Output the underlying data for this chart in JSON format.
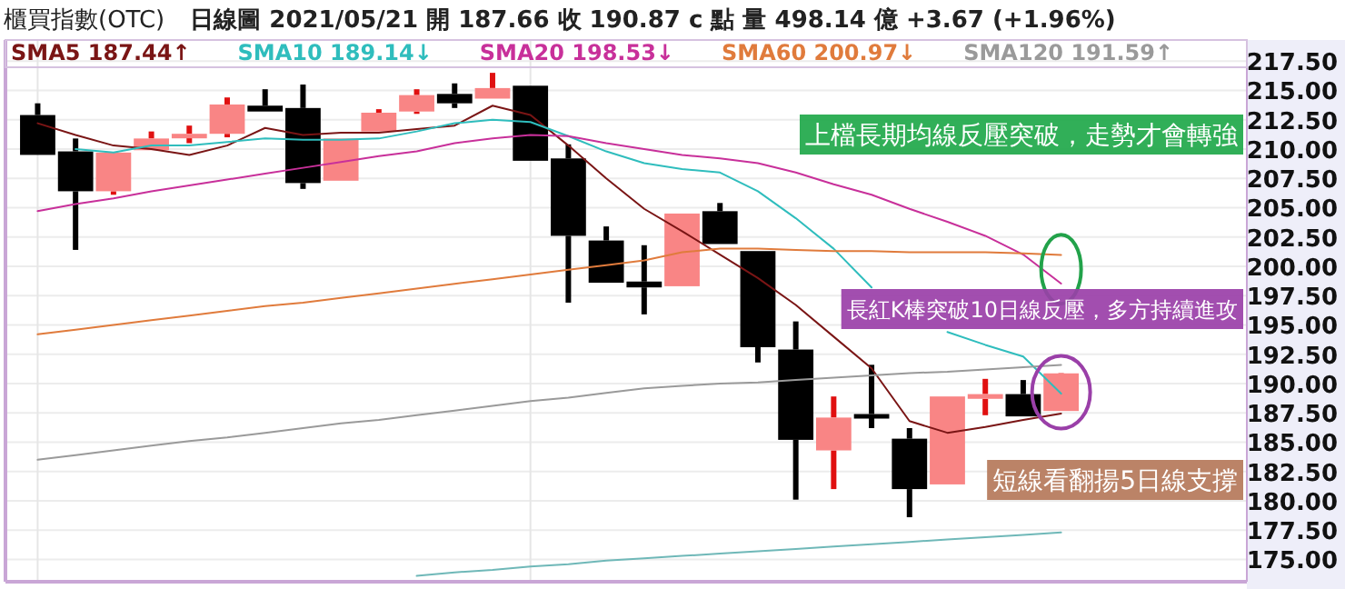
{
  "chart_data": {
    "type": "candlestick",
    "title": "櫃買指數(OTC)",
    "subtitle": "日線圖  2021/05/21  開 187.66  收 190.87 c 點  量 498.14 億  +3.67 (+1.96%)",
    "categories": [
      null,
      null,
      null,
      null,
      null,
      null,
      null,
      null,
      null,
      null,
      null,
      null,
      null,
      null,
      null,
      null,
      null,
      null,
      null,
      null,
      null,
      null,
      null,
      null,
      null,
      null,
      null,
      null
    ],
    "ohlc": [
      [
        212.9,
        213.9,
        209.5,
        209.5
      ],
      [
        209.8,
        210.9,
        201.4,
        206.4
      ],
      [
        206.4,
        209.7,
        206.1,
        209.7
      ],
      [
        209.9,
        211.5,
        209.9,
        210.9
      ],
      [
        211.1,
        212.0,
        210.5,
        211.3
      ],
      [
        211.3,
        214.4,
        211.0,
        213.8
      ],
      [
        213.7,
        215.1,
        213.2,
        213.2
      ],
      [
        213.5,
        215.5,
        206.6,
        207.1
      ],
      [
        207.3,
        210.9,
        207.3,
        210.9
      ],
      [
        211.5,
        213.4,
        211.5,
        213.1
      ],
      [
        213.2,
        215.1,
        213.0,
        214.6
      ],
      [
        214.7,
        215.6,
        213.5,
        213.9
      ],
      [
        214.3,
        216.5,
        214.3,
        215.2
      ],
      [
        215.4,
        215.4,
        209.0,
        209.0
      ],
      [
        209.2,
        210.4,
        196.9,
        202.6
      ],
      [
        202.2,
        203.4,
        198.6,
        198.6
      ],
      [
        198.7,
        201.8,
        195.9,
        198.2
      ],
      [
        198.3,
        204.5,
        198.3,
        204.5
      ],
      [
        204.7,
        205.4,
        201.9,
        201.9
      ],
      [
        201.3,
        201.3,
        191.8,
        193.1
      ],
      [
        192.9,
        195.3,
        180.1,
        185.2
      ],
      [
        184.3,
        188.9,
        181.0,
        187.1
      ],
      [
        187.4,
        191.6,
        186.2,
        187.1
      ],
      [
        185.3,
        186.2,
        178.6,
        181.0
      ],
      [
        181.4,
        188.9,
        181.4,
        188.9
      ],
      [
        188.7,
        190.4,
        187.3,
        189.1
      ],
      [
        189.1,
        190.3,
        187.2,
        187.2
      ],
      [
        187.66,
        190.9,
        187.66,
        190.87
      ]
    ],
    "series": [
      {
        "type": "line",
        "name": "SMA5 187.44↑",
        "color": "#7a1515",
        "values": [
          212.2,
          211.2,
          210.3,
          210.0,
          209.5,
          210.3,
          211.8,
          211.2,
          211.4,
          211.4,
          211.7,
          212.0,
          213.7,
          212.9,
          210.3,
          207.5,
          204.9,
          203.0,
          201.0,
          199.0,
          196.7,
          194.0,
          191.3,
          186.8,
          185.8,
          186.3,
          186.9,
          187.44
        ]
      },
      {
        "type": "line",
        "name": "SMA10 189.14↓",
        "color": "#2fbdbd",
        "values": [
          null,
          210.0,
          209.7,
          210.3,
          210.3,
          210.6,
          210.9,
          210.8,
          210.8,
          210.9,
          211.5,
          212.2,
          212.5,
          212.3,
          211.1,
          209.8,
          208.8,
          208.3,
          208.0,
          206.4,
          204.1,
          201.5,
          198.2,
          null,
          194.4,
          193.3,
          192.3,
          189.14
        ]
      },
      {
        "type": "line",
        "name": "SMA20 198.53↓",
        "color": "#c8309a",
        "values": [
          204.7,
          205.3,
          205.8,
          206.4,
          206.9,
          207.4,
          207.9,
          208.4,
          208.9,
          209.4,
          209.8,
          210.5,
          210.9,
          211.2,
          211.1,
          210.5,
          210.0,
          209.5,
          209.2,
          208.8,
          208.0,
          207.0,
          206.1,
          204.9,
          203.8,
          202.6,
          201.0,
          198.53
        ]
      },
      {
        "type": "line",
        "name": "SMA60 200.97↓",
        "color": "#e07b3c",
        "values": [
          194.2,
          194.6,
          195.0,
          195.4,
          195.8,
          196.2,
          196.6,
          196.9,
          197.3,
          197.7,
          198.1,
          198.5,
          198.9,
          199.3,
          199.7,
          200.1,
          200.5,
          201.2,
          201.5,
          201.5,
          201.4,
          201.3,
          201.3,
          201.2,
          201.2,
          201.2,
          201.1,
          200.97
        ]
      },
      {
        "type": "line",
        "name": "SMA120 191.59↑",
        "color": "#9a9a9a",
        "values": [
          183.5,
          183.9,
          184.3,
          184.7,
          185.1,
          185.4,
          185.8,
          186.2,
          186.6,
          186.9,
          187.3,
          187.7,
          188.1,
          188.5,
          188.8,
          189.2,
          189.6,
          189.8,
          190.0,
          190.1,
          190.3,
          190.5,
          190.7,
          190.9,
          191.0,
          191.2,
          191.4,
          191.59
        ]
      },
      {
        "type": "line",
        "color": "#6fb8b8",
        "values": [
          null,
          null,
          null,
          null,
          null,
          null,
          null,
          null,
          null,
          null,
          173.6,
          173.9,
          174.1,
          174.4,
          174.6,
          174.9,
          175.1,
          175.3,
          175.5,
          175.7,
          175.9,
          176.1,
          176.3,
          176.5,
          176.7,
          176.9,
          177.1,
          177.3
        ]
      }
    ],
    "ylim": [
      173.1,
      219.3
    ],
    "yticks": [
      {
        "value": 175,
        "label": "175.00"
      },
      {
        "value": 177.5,
        "label": "177.50"
      },
      {
        "value": 180,
        "label": "180.00"
      },
      {
        "value": 182.5,
        "label": "182.50"
      },
      {
        "value": 185,
        "label": "185.00"
      },
      {
        "value": 187.5,
        "label": "187.50"
      },
      {
        "value": 190,
        "label": "190.00"
      },
      {
        "value": 192.5,
        "label": "192.50"
      },
      {
        "value": 195,
        "label": "195.00"
      },
      {
        "value": 197.5,
        "label": "197.50"
      },
      {
        "value": 200,
        "label": "200.00"
      },
      {
        "value": 202.5,
        "label": "202.50"
      },
      {
        "value": 205,
        "label": "205.00"
      },
      {
        "value": 207.5,
        "label": "207.50"
      },
      {
        "value": 210,
        "label": "210.00"
      },
      {
        "value": 212.5,
        "label": "212.50"
      },
      {
        "value": 215,
        "label": "215.00"
      },
      {
        "value": 217.5,
        "label": "217.50"
      }
    ],
    "grid": "y",
    "legend": "top",
    "annotations": [
      "上檔長期均線反壓突破，走勢才會轉強",
      "長紅K棒突破10日線反壓，多方持續進攻",
      "短線看翻揚5日線支撐"
    ]
  }
}
